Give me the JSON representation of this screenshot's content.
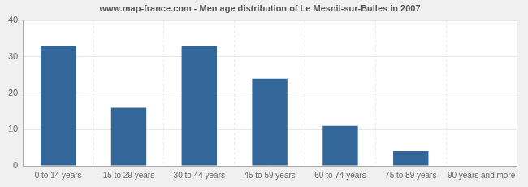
{
  "chart_data": {
    "type": "bar",
    "title": "www.map-france.com - Men age distribution of Le Mesnil-sur-Bulles in 2007",
    "categories": [
      "0 to 14 years",
      "15 to 29 years",
      "30 to 44 years",
      "45 to 59 years",
      "60 to 74 years",
      "75 to 89 years",
      "90 years and more"
    ],
    "values": [
      33,
      16,
      33,
      24,
      11,
      4,
      0
    ],
    "color": "#336699",
    "ylim": [
      0,
      40
    ],
    "yticks": [
      0,
      10,
      20,
      30,
      40
    ],
    "grid": true
  }
}
